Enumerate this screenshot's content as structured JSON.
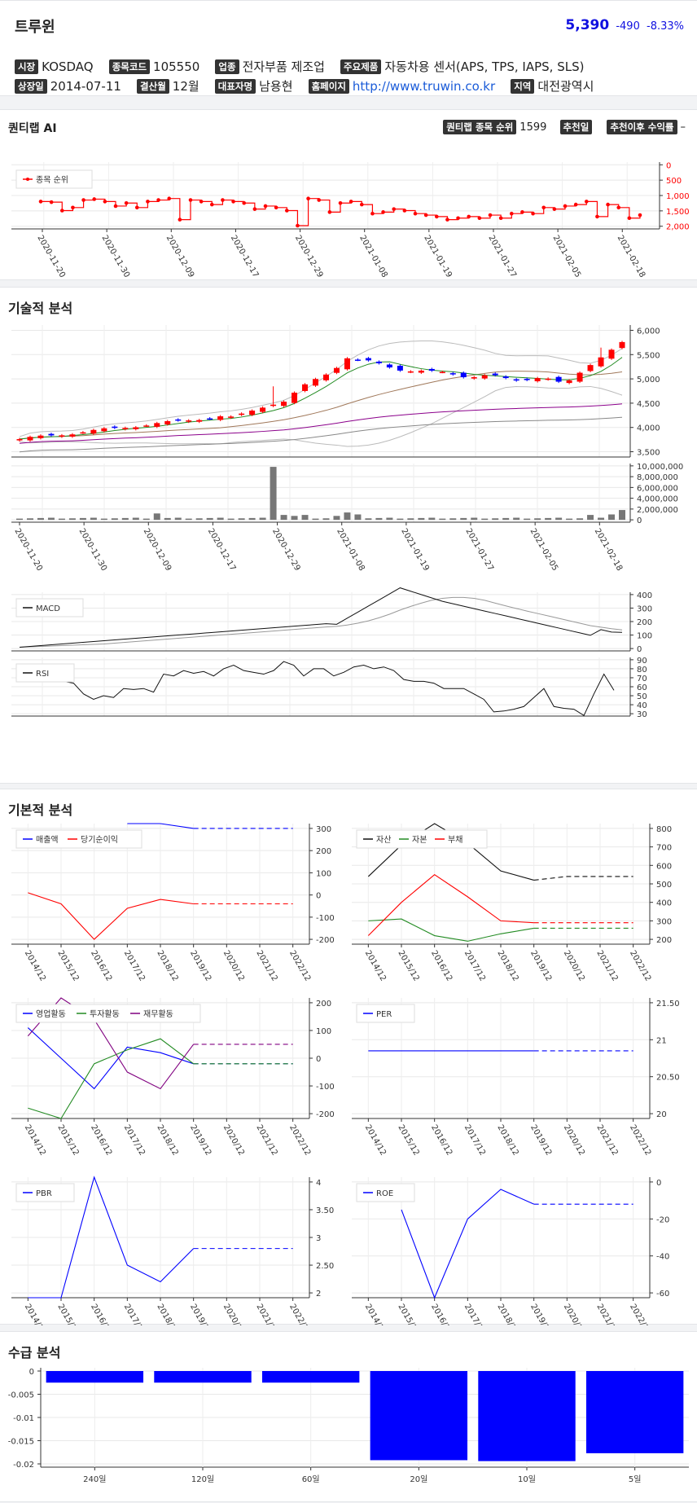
{
  "header": {
    "title": "트루윈",
    "price": "5,390",
    "change": "-490",
    "change_pct": "-8.33%"
  },
  "info": {
    "market_label": "시장",
    "market": "KOSDAQ",
    "code_label": "종목코드",
    "code": "105550",
    "industry_label": "업종",
    "industry": "전자부품 제조업",
    "product_label": "주요제품",
    "product": "자동차용 센서(APS, TPS, IAPS, SLS)",
    "listed_label": "상장일",
    "listed": "2014-07-11",
    "fiscal_label": "결산월",
    "fiscal": "12월",
    "ceo_label": "대표자명",
    "ceo": "남용현",
    "homepage_label": "홈페이지",
    "homepage": "http://www.truwin.co.kr",
    "region_label": "지역",
    "region": "대전광역시"
  },
  "quantilab": {
    "title": "퀀티랩 AI",
    "rank_label": "퀀티랩 종목 순위",
    "rank": "1599",
    "rec_date_label": "추천일",
    "rec_return_label": "추천이후 수익률",
    "rec_return": "–",
    "legend": "종목 순위"
  },
  "sections": {
    "technical": "기술적 분석",
    "fundamental": "기본적 분석",
    "supply": "수급 분석"
  },
  "dates": [
    "2020-11-20",
    "2020-11-30",
    "2020-12-09",
    "2020-12-17",
    "2020-12-29",
    "2021-01-08",
    "2021-01-19",
    "2021-01-27",
    "2021-02-05",
    "2021-02-18"
  ],
  "years": [
    "2014/12",
    "2015/12",
    "2016/12",
    "2017/12",
    "2018/12",
    "2019/12",
    "2020/12",
    "2021/12",
    "2022/12"
  ],
  "colors": {
    "up": "#ff0000",
    "down": "#0000ff",
    "accent": "#1010e0"
  },
  "chart_data": [
    {
      "type": "line",
      "name": "rank",
      "title": "",
      "series": [
        {
          "name": "종목 순위",
          "values": [
            1200,
            1220,
            1500,
            1400,
            1150,
            1120,
            1200,
            1350,
            1250,
            1400,
            1200,
            1150,
            1100,
            1800,
            1150,
            1200,
            1300,
            1150,
            1200,
            1250,
            1450,
            1350,
            1400,
            1500,
            2000,
            1100,
            1150,
            1550,
            1250,
            1200,
            1300,
            1600,
            1550,
            1450,
            1500,
            1600,
            1650,
            1700,
            1800,
            1750,
            1700,
            1750,
            1650,
            1750,
            1600,
            1550,
            1600,
            1400,
            1450,
            1350,
            1300,
            1200,
            1700,
            1300,
            1400,
            1750,
            1650
          ]
        }
      ],
      "ylim": [
        0,
        2000
      ],
      "yticks": [
        "0",
        "500",
        "1,000",
        "1,500",
        "2,000"
      ]
    },
    {
      "type": "candlestick",
      "name": "price",
      "yticks": [
        "3,500",
        "4,000",
        "4,500",
        "5,000",
        "5,500",
        "6,000"
      ],
      "ylim": [
        3200,
        6300
      ]
    },
    {
      "type": "bar",
      "name": "volume",
      "yticks": [
        "0",
        "2,000,000",
        "4,000,000",
        "6,000,000",
        "8,000,000",
        "10,000,000"
      ]
    },
    {
      "type": "line",
      "name": "macd",
      "series": [
        {
          "name": "MACD"
        }
      ],
      "yticks": [
        "0",
        "100",
        "200",
        "300",
        "400"
      ]
    },
    {
      "type": "line",
      "name": "rsi",
      "series": [
        {
          "name": "RSI"
        }
      ],
      "yticks": [
        "30",
        "40",
        "50",
        "60",
        "70",
        "80",
        "90"
      ]
    },
    {
      "type": "line",
      "name": "revenue",
      "series": [
        {
          "name": "매출액",
          "values": [
            null,
            null,
            null,
            360,
            340,
            300,
            300,
            300,
            300
          ]
        },
        {
          "name": "당기순이익",
          "values": [
            10,
            -40,
            -200,
            -60,
            -20,
            -40,
            -40,
            -40,
            -40
          ]
        }
      ],
      "yticks": [
        "-200",
        "-100",
        "0",
        "100",
        "200",
        "300"
      ]
    },
    {
      "type": "line",
      "name": "assets",
      "series": [
        {
          "name": "자산",
          "values": [
            540,
            710,
            890,
            720,
            570,
            520,
            540,
            540,
            540
          ]
        },
        {
          "name": "자본",
          "values": [
            300,
            310,
            220,
            190,
            230,
            260,
            260,
            260,
            260
          ]
        },
        {
          "name": "부채",
          "values": [
            220,
            400,
            550,
            430,
            300,
            290,
            290,
            290,
            290
          ]
        }
      ],
      "yticks": [
        "200",
        "300",
        "400",
        "500",
        "600",
        "700",
        "800"
      ]
    },
    {
      "type": "line",
      "name": "cashflow",
      "series": [
        {
          "name": "영업활동",
          "values": [
            110,
            0,
            -110,
            40,
            20,
            -20,
            -20,
            -20,
            -20
          ]
        },
        {
          "name": "투자활동",
          "values": [
            -180,
            -240,
            -20,
            30,
            70,
            -20,
            -20,
            -20,
            -20
          ]
        },
        {
          "name": "재무활동",
          "values": [
            80,
            240,
            140,
            -50,
            -110,
            50,
            50,
            50,
            50
          ]
        }
      ],
      "yticks": [
        "-200",
        "-100",
        "0",
        "100",
        "200"
      ]
    },
    {
      "type": "line",
      "name": "per",
      "series": [
        {
          "name": "PER",
          "values": [
            20.85,
            20.85,
            20.85,
            20.85,
            20.85,
            20.85,
            20.85,
            20.85,
            20.85
          ]
        }
      ],
      "yticks": [
        "20",
        "20.50",
        "21",
        "21.50"
      ]
    },
    {
      "type": "line",
      "name": "pbr",
      "series": [
        {
          "name": "PBR",
          "values": [
            1.5,
            1.8,
            4.2,
            2.5,
            2.2,
            2.8,
            2.8,
            2.8,
            2.8
          ]
        }
      ],
      "yticks": [
        "2",
        "2.50",
        "3",
        "3.50",
        "4"
      ]
    },
    {
      "type": "line",
      "name": "roe",
      "series": [
        {
          "name": "ROE",
          "values": [
            null,
            -15,
            -70,
            -20,
            -4,
            -12,
            -12,
            -12,
            -12
          ]
        }
      ],
      "yticks": [
        "-60",
        "-40",
        "-20",
        "0"
      ]
    },
    {
      "type": "bar",
      "name": "supply",
      "categories": [
        "240일",
        "120일",
        "60일",
        "20일",
        "10일",
        "5일"
      ],
      "values": [
        -0.0025,
        -0.0025,
        -0.0025,
        -0.0192,
        -0.0194,
        -0.0177
      ],
      "ylim": [
        -0.02,
        0
      ],
      "yticks": [
        "0",
        "-0.005",
        "-0.01",
        "-0.015",
        "-0.02"
      ]
    }
  ]
}
